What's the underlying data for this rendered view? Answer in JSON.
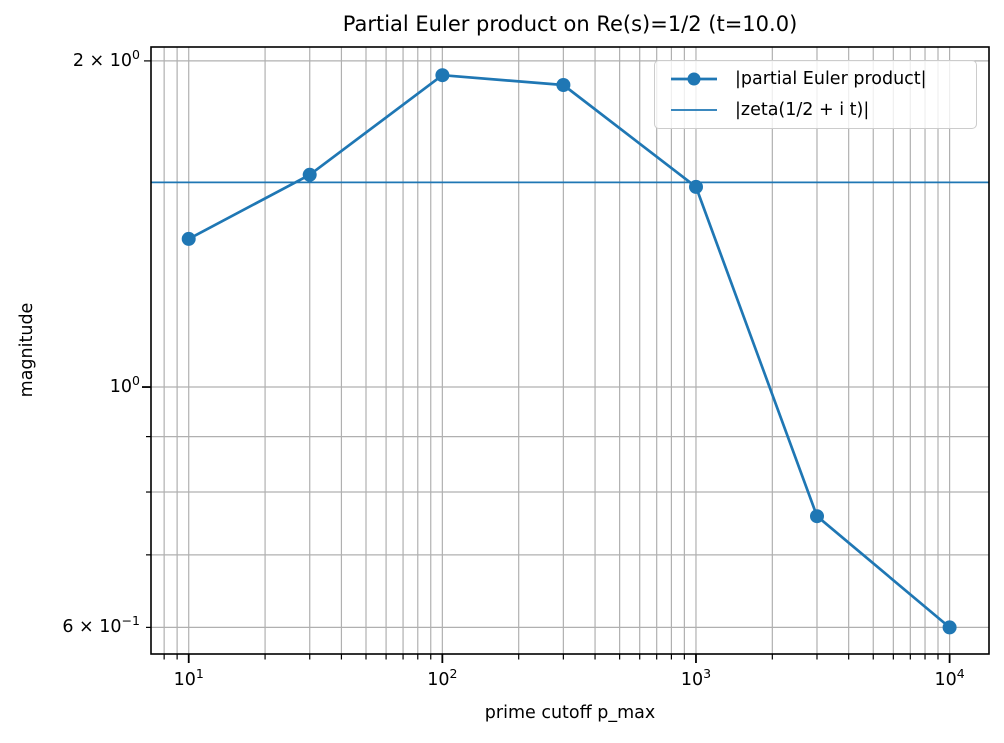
{
  "figure": {
    "background": "#ffffff"
  },
  "chart_data": {
    "type": "line",
    "title": "Partial Euler product on Re(s)=1/2 (t=10.0)",
    "xlabel": "prime cutoff p_max",
    "ylabel": "magnitude",
    "xscale": "log",
    "yscale": "log",
    "xlim": [
      7.1,
      14300
    ],
    "ylim": [
      0.567,
      2.06
    ],
    "grid": "both",
    "grid_color": "#b0b0b0",
    "axis_color": "#000000",
    "legend_position": "upper right",
    "x": [
      10,
      30,
      100,
      300,
      1000,
      3000,
      10000
    ],
    "series": [
      {
        "name": "|partial Euler product|",
        "type": "line+markers",
        "values": [
          1.37,
          1.57,
          1.94,
          1.9,
          1.53,
          0.76,
          0.6
        ],
        "color": "#1f77b4",
        "linewidth": 2.7,
        "marker_radius": 7
      },
      {
        "name": "|zeta(1/2 + i t)|",
        "type": "hline",
        "value": 1.545,
        "color": "#1f77b4",
        "linewidth": 1.7
      }
    ],
    "x_ticks": [
      {
        "value": 10,
        "mantissa": "10",
        "exponent": "1"
      },
      {
        "value": 100,
        "mantissa": "10",
        "exponent": "2"
      },
      {
        "value": 1000,
        "mantissa": "10",
        "exponent": "3"
      },
      {
        "value": 10000,
        "mantissa": "10",
        "exponent": "4"
      }
    ],
    "y_ticks": [
      {
        "value": 2,
        "mantissa": "2 × 10",
        "exponent": "0"
      },
      {
        "value": 1,
        "mantissa": "10",
        "exponent": "0"
      },
      {
        "value": 0.6,
        "mantissa": "6 × 10",
        "exponent": "−1"
      }
    ]
  }
}
